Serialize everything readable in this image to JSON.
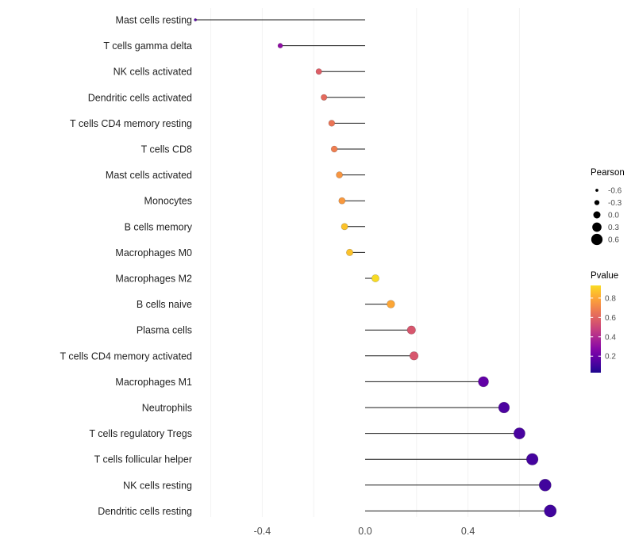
{
  "chart_data": {
    "type": "lollipop",
    "orientation": "horizontal",
    "title": "",
    "xlabel": "",
    "ylabel": "",
    "xlim": [
      -0.72,
      0.8
    ],
    "grid": "faint-vertical",
    "x_ticks": [
      {
        "value": -0.4,
        "label": "-0.4"
      },
      {
        "value": 0.0,
        "label": "0.0"
      },
      {
        "value": 0.4,
        "label": "0.4"
      }
    ],
    "rows": [
      {
        "category": "Mast cells resting",
        "pearson": -0.66,
        "pvalue": 0.15
      },
      {
        "category": "T cells gamma delta",
        "pearson": -0.33,
        "pvalue": 0.3
      },
      {
        "category": "NK cells activated",
        "pearson": -0.18,
        "pvalue": 0.58
      },
      {
        "category": "Dendritic cells activated",
        "pearson": -0.16,
        "pvalue": 0.62
      },
      {
        "category": "T cells CD4 memory resting",
        "pearson": -0.13,
        "pvalue": 0.65
      },
      {
        "category": "T cells CD8",
        "pearson": -0.12,
        "pvalue": 0.68
      },
      {
        "category": "Mast cells activated",
        "pearson": -0.1,
        "pvalue": 0.75
      },
      {
        "category": "Monocytes",
        "pearson": -0.09,
        "pvalue": 0.76
      },
      {
        "category": "B cells memory",
        "pearson": -0.08,
        "pvalue": 0.87
      },
      {
        "category": "Macrophages M0",
        "pearson": -0.06,
        "pvalue": 0.87
      },
      {
        "category": "Macrophages M2",
        "pearson": 0.04,
        "pvalue": 0.93
      },
      {
        "category": "B cells naive",
        "pearson": 0.1,
        "pvalue": 0.8
      },
      {
        "category": "Plasma cells",
        "pearson": 0.18,
        "pvalue": 0.55
      },
      {
        "category": "T cells CD4 memory activated",
        "pearson": 0.19,
        "pvalue": 0.55
      },
      {
        "category": "Macrophages M1",
        "pearson": 0.46,
        "pvalue": 0.18
      },
      {
        "category": "Neutrophils",
        "pearson": 0.54,
        "pvalue": 0.13
      },
      {
        "category": "T cells regulatory  Tregs",
        "pearson": 0.6,
        "pvalue": 0.12
      },
      {
        "category": "T cells follicular helper",
        "pearson": 0.65,
        "pvalue": 0.11
      },
      {
        "category": "NK cells resting",
        "pearson": 0.7,
        "pvalue": 0.1
      },
      {
        "category": "Dendritic cells resting",
        "pearson": 0.72,
        "pvalue": 0.1
      }
    ],
    "size_legend": {
      "title": "Pearson",
      "entries": [
        {
          "value": -0.6,
          "label": "-0.6"
        },
        {
          "value": -0.3,
          "label": "-0.3"
        },
        {
          "value": 0.0,
          "label": "0.0"
        },
        {
          "value": 0.3,
          "label": "0.3"
        },
        {
          "value": 0.6,
          "label": "0.6"
        }
      ]
    },
    "color_legend": {
      "title": "Pvalue",
      "colormap": "plasma",
      "top_value": 0.93,
      "bottom_value": 0.03,
      "ticks": [
        {
          "value": 0.8,
          "label": "0.8"
        },
        {
          "value": 0.6,
          "label": "0.6"
        },
        {
          "value": 0.4,
          "label": "0.4"
        },
        {
          "value": 0.2,
          "label": "0.2"
        }
      ]
    }
  },
  "colors": {
    "background": "#ffffff",
    "stem": "#1a1a1a",
    "grid": "#f2f2f2",
    "axis_text": "#4d4d4d",
    "label_text": "#1f1f1f",
    "legend_text": "#4d4d4d",
    "legend_title": "#000000",
    "size_dot": "#000000"
  }
}
